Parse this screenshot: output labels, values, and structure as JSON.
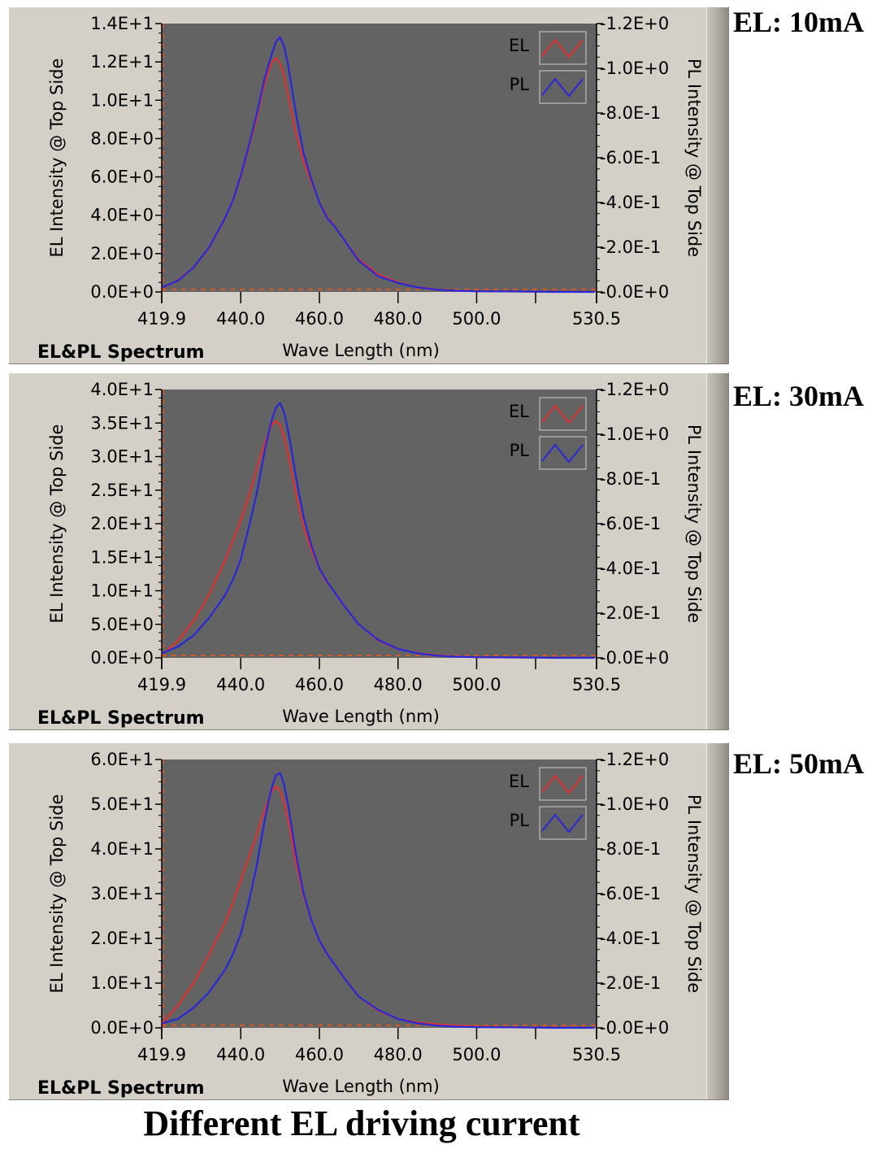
{
  "footer": {
    "caption": "Different EL driving current"
  },
  "colors": {
    "plot_bg": "#636363",
    "el_line": "#e03030",
    "pl_line": "#2828d8",
    "baseline_dash": "#d05a2a"
  },
  "chart_data": [
    {
      "type": "line",
      "side_label": "EL: 10mA",
      "title": "EL&PL Spectrum",
      "xlabel": "Wave Length (nm)",
      "ylabel_left": "EL Intensity @ Top Side",
      "ylabel_right": "PL Intensity @ Top Side",
      "xlim": [
        419.9,
        530.5
      ],
      "ylim_left": [
        0,
        14
      ],
      "ylim_right": [
        0,
        1.2
      ],
      "x_ticks": [
        "419.9",
        "440.0",
        "460.0",
        "480.0",
        "500.0",
        "530.5"
      ],
      "y_ticks_left": [
        "0.0E+0",
        "2.0E+0",
        "4.0E+0",
        "6.0E+0",
        "8.0E+0",
        "1.0E+1",
        "1.2E+1",
        "1.4E+1"
      ],
      "y_ticks_right": [
        "-0.0E+0",
        "-2.0E-1",
        "-4.0E-1",
        "-6.0E-1",
        "-8.0E-1",
        "-1.0E+0",
        "-1.2E+0"
      ],
      "legend": [
        "EL",
        "PL"
      ],
      "legend_position": "top-right",
      "x": [
        420,
        424,
        428,
        432,
        436,
        438,
        440,
        442,
        444,
        445,
        446,
        447,
        448,
        449,
        450,
        451,
        452,
        453,
        454,
        456,
        458,
        460,
        462,
        464,
        466,
        470,
        475,
        480,
        485,
        490,
        495,
        500,
        510,
        520,
        530
      ],
      "series": [
        {
          "name": "EL",
          "axis": "left",
          "values": [
            0.2,
            0.6,
            1.3,
            2.3,
            3.8,
            4.8,
            6.0,
            7.5,
            9.0,
            10.0,
            10.8,
            11.5,
            12.0,
            12.2,
            11.9,
            11.3,
            10.3,
            9.3,
            8.3,
            6.8,
            5.7,
            4.7,
            3.9,
            3.4,
            2.8,
            1.7,
            0.9,
            0.5,
            0.25,
            0.12,
            0.07,
            0.04,
            0.02,
            0.01,
            0.01
          ]
        },
        {
          "name": "PL",
          "axis": "right",
          "values": [
            0.02,
            0.05,
            0.11,
            0.2,
            0.33,
            0.41,
            0.52,
            0.65,
            0.79,
            0.87,
            0.95,
            1.01,
            1.07,
            1.12,
            1.14,
            1.1,
            1.02,
            0.91,
            0.8,
            0.62,
            0.5,
            0.4,
            0.33,
            0.29,
            0.24,
            0.14,
            0.07,
            0.04,
            0.02,
            0.01,
            0.005,
            0.003,
            0.002,
            0.0,
            0.0
          ]
        }
      ]
    },
    {
      "type": "line",
      "side_label": "EL: 30mA",
      "title": "EL&PL Spectrum",
      "xlabel": "Wave Length (nm)",
      "ylabel_left": "EL Intensity @ Top Side",
      "ylabel_right": "PL Intensity @ Top Side",
      "xlim": [
        419.9,
        530.5
      ],
      "ylim_left": [
        0,
        40
      ],
      "ylim_right": [
        0,
        1.2
      ],
      "x_ticks": [
        "419.9",
        "440.0",
        "460.0",
        "480.0",
        "500.0",
        "530.5"
      ],
      "y_ticks_left": [
        "0.0E+0",
        "5.0E+0",
        "1.0E+1",
        "1.5E+1",
        "2.0E+1",
        "2.5E+1",
        "3.0E+1",
        "3.5E+1",
        "4.0E+1"
      ],
      "y_ticks_right": [
        "-0.0E+0",
        "-2.0E-1",
        "-4.0E-1",
        "-6.0E-1",
        "-8.0E-1",
        "-1.0E+0",
        "-1.2E+0"
      ],
      "legend": [
        "EL",
        "PL"
      ],
      "legend_position": "top-right",
      "x": [
        420,
        424,
        428,
        432,
        436,
        438,
        440,
        442,
        444,
        445,
        446,
        447,
        448,
        449,
        450,
        451,
        452,
        453,
        454,
        456,
        458,
        460,
        462,
        464,
        466,
        470,
        475,
        480,
        485,
        490,
        495,
        500,
        510,
        520,
        530
      ],
      "series": [
        {
          "name": "EL",
          "axis": "left",
          "values": [
            0.5,
            2.5,
            5.5,
            9.5,
            14.5,
            17.5,
            20.5,
            24.0,
            28.0,
            30.0,
            31.8,
            33.5,
            34.8,
            35.3,
            34.7,
            33.0,
            30.5,
            27.5,
            24.5,
            19.5,
            16.0,
            13.3,
            11.2,
            9.7,
            8.0,
            5.0,
            2.6,
            1.3,
            0.7,
            0.4,
            0.2,
            0.1,
            0.05,
            0.02,
            0.01
          ]
        },
        {
          "name": "PL",
          "axis": "right",
          "values": [
            0.02,
            0.05,
            0.1,
            0.18,
            0.28,
            0.35,
            0.44,
            0.58,
            0.73,
            0.82,
            0.92,
            1.0,
            1.07,
            1.12,
            1.14,
            1.1,
            1.02,
            0.92,
            0.81,
            0.63,
            0.5,
            0.4,
            0.34,
            0.29,
            0.24,
            0.15,
            0.08,
            0.04,
            0.02,
            0.01,
            0.005,
            0.003,
            0.002,
            0.0,
            0.0
          ]
        }
      ]
    },
    {
      "type": "line",
      "side_label": "EL: 50mA",
      "title": "EL&PL Spectrum",
      "xlabel": "Wave Length (nm)",
      "ylabel_left": "EL Intensity @ Top Side",
      "ylabel_right": "PL Intensity @ Top Side",
      "xlim": [
        419.9,
        530.5
      ],
      "ylim_left": [
        0,
        60
      ],
      "ylim_right": [
        0,
        1.2
      ],
      "x_ticks": [
        "419.9",
        "440.0",
        "460.0",
        "480.0",
        "500.0",
        "530.5"
      ],
      "y_ticks_left": [
        "0.0E+0",
        "1.0E+1",
        "2.0E+1",
        "3.0E+1",
        "4.0E+1",
        "5.0E+1",
        "6.0E+1"
      ],
      "y_ticks_right": [
        "-0.0E+0",
        "-2.0E-1",
        "-4.0E-1",
        "-6.0E-1",
        "-8.0E-1",
        "-1.0E+0",
        "-1.2E+0"
      ],
      "legend": [
        "EL",
        "PL"
      ],
      "legend_position": "top-right",
      "x": [
        420,
        424,
        428,
        432,
        436,
        438,
        440,
        442,
        444,
        445,
        446,
        447,
        448,
        449,
        450,
        451,
        452,
        453,
        454,
        456,
        458,
        460,
        462,
        464,
        466,
        470,
        475,
        480,
        485,
        490,
        495,
        500,
        510,
        520,
        530
      ],
      "series": [
        {
          "name": "EL",
          "axis": "left",
          "values": [
            1.0,
            5.0,
            10.0,
            16.5,
            23.5,
            28.0,
            33.0,
            38.0,
            43.0,
            46.0,
            48.5,
            51.0,
            53.0,
            54.0,
            53.0,
            50.5,
            46.5,
            42.0,
            37.0,
            29.5,
            24.0,
            19.5,
            16.5,
            14.0,
            11.5,
            7.0,
            3.8,
            2.0,
            1.2,
            0.8,
            0.5,
            0.3,
            0.15,
            0.05,
            0.02
          ]
        },
        {
          "name": "PL",
          "axis": "right",
          "values": [
            0.02,
            0.04,
            0.09,
            0.16,
            0.26,
            0.33,
            0.42,
            0.56,
            0.72,
            0.82,
            0.92,
            1.01,
            1.08,
            1.13,
            1.14,
            1.09,
            1.0,
            0.89,
            0.78,
            0.6,
            0.48,
            0.39,
            0.33,
            0.28,
            0.23,
            0.14,
            0.08,
            0.04,
            0.02,
            0.01,
            0.005,
            0.003,
            0.002,
            0.0,
            0.0
          ]
        }
      ]
    }
  ]
}
